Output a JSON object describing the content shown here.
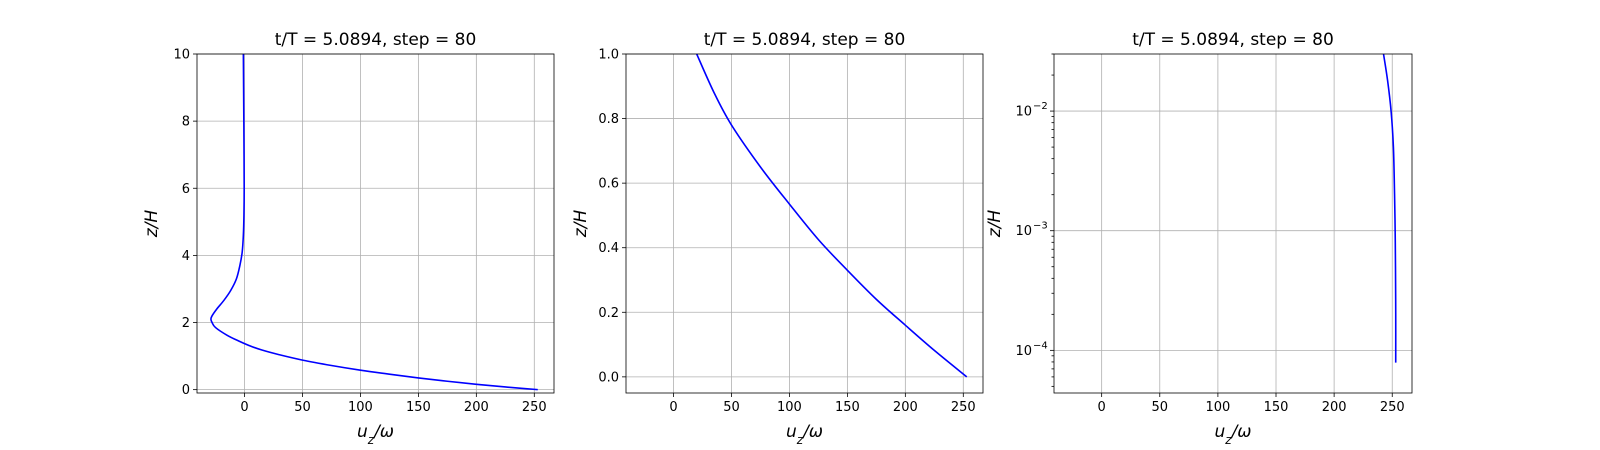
{
  "chart_data": [
    {
      "type": "line",
      "title": "t/T = 5.0894, step = 80",
      "xlabel": "u_z/ω",
      "ylabel": "z/H",
      "xlim": [
        -41,
        267
      ],
      "ylim": [
        -0.1,
        10
      ],
      "yscale": "linear",
      "xticks": [
        0,
        50,
        100,
        150,
        200,
        250
      ],
      "xtick_labels": [
        "0",
        "50",
        "100",
        "150",
        "200",
        "250"
      ],
      "yticks": [
        0,
        2,
        4,
        6,
        8,
        10
      ],
      "ytick_labels": [
        "0",
        "2",
        "4",
        "6",
        "8",
        "10"
      ],
      "grid": true,
      "series": [
        {
          "color": "#0000ff",
          "x": [
            253,
            225,
            200,
            175,
            150,
            125,
            100,
            75,
            50,
            30,
            15,
            5,
            -5,
            -15,
            -25,
            -28,
            -29,
            -28,
            -24,
            -18,
            -12,
            -7,
            -4,
            -2,
            -1,
            -0.5,
            -0.3,
            -0.5,
            -0.8,
            -1
          ],
          "y": [
            0,
            0.08,
            0.16,
            0.25,
            0.35,
            0.46,
            0.58,
            0.72,
            0.88,
            1.04,
            1.18,
            1.3,
            1.45,
            1.62,
            1.85,
            2.0,
            2.1,
            2.2,
            2.4,
            2.65,
            2.95,
            3.3,
            3.7,
            4.1,
            4.6,
            5.2,
            6.0,
            7.5,
            9.0,
            10
          ]
        }
      ]
    },
    {
      "type": "line",
      "title": "t/T = 5.0894, step = 80",
      "xlabel": "u_z/ω",
      "ylabel": "z/H",
      "xlim": [
        -41,
        267
      ],
      "ylim": [
        -0.05,
        1.0
      ],
      "yscale": "linear",
      "xticks": [
        0,
        50,
        100,
        150,
        200,
        250
      ],
      "xtick_labels": [
        "0",
        "50",
        "100",
        "150",
        "200",
        "250"
      ],
      "yticks": [
        0,
        0.2,
        0.4,
        0.6,
        0.8,
        1.0
      ],
      "ytick_labels": [
        "0.0",
        "0.2",
        "0.4",
        "0.6",
        "0.8",
        "1.0"
      ],
      "grid": true,
      "series": [
        {
          "color": "#0000ff",
          "x": [
            253,
            225,
            200,
            175,
            150,
            125,
            100,
            75,
            50,
            35,
            20
          ],
          "y": [
            0,
            0.082,
            0.16,
            0.24,
            0.33,
            0.425,
            0.535,
            0.65,
            0.78,
            0.88,
            1.0
          ]
        }
      ]
    },
    {
      "type": "line",
      "title": "t/T = 5.0894, step = 80",
      "xlabel": "u_z/ω",
      "ylabel": "z/H",
      "xlim": [
        -41,
        267
      ],
      "ylim": [
        4.4e-05,
        0.03
      ],
      "yscale": "log",
      "xticks": [
        0,
        50,
        100,
        150,
        200,
        250
      ],
      "xtick_labels": [
        "0",
        "50",
        "100",
        "150",
        "200",
        "250"
      ],
      "yticks": [
        0.0001,
        0.001,
        0.01
      ],
      "ytick_labels": [
        "10",
        "10",
        "10"
      ],
      "ytick_exponents": [
        "−4",
        "−3",
        "−2"
      ],
      "grid": true,
      "series": [
        {
          "color": "#0000ff",
          "x": [
            253,
            253,
            252.8,
            252.5,
            252,
            251,
            249,
            246,
            242.5
          ],
          "y": [
            7.9e-05,
            0.0002,
            0.0005,
            0.001,
            0.002,
            0.005,
            0.01,
            0.018,
            0.03
          ]
        }
      ]
    }
  ]
}
